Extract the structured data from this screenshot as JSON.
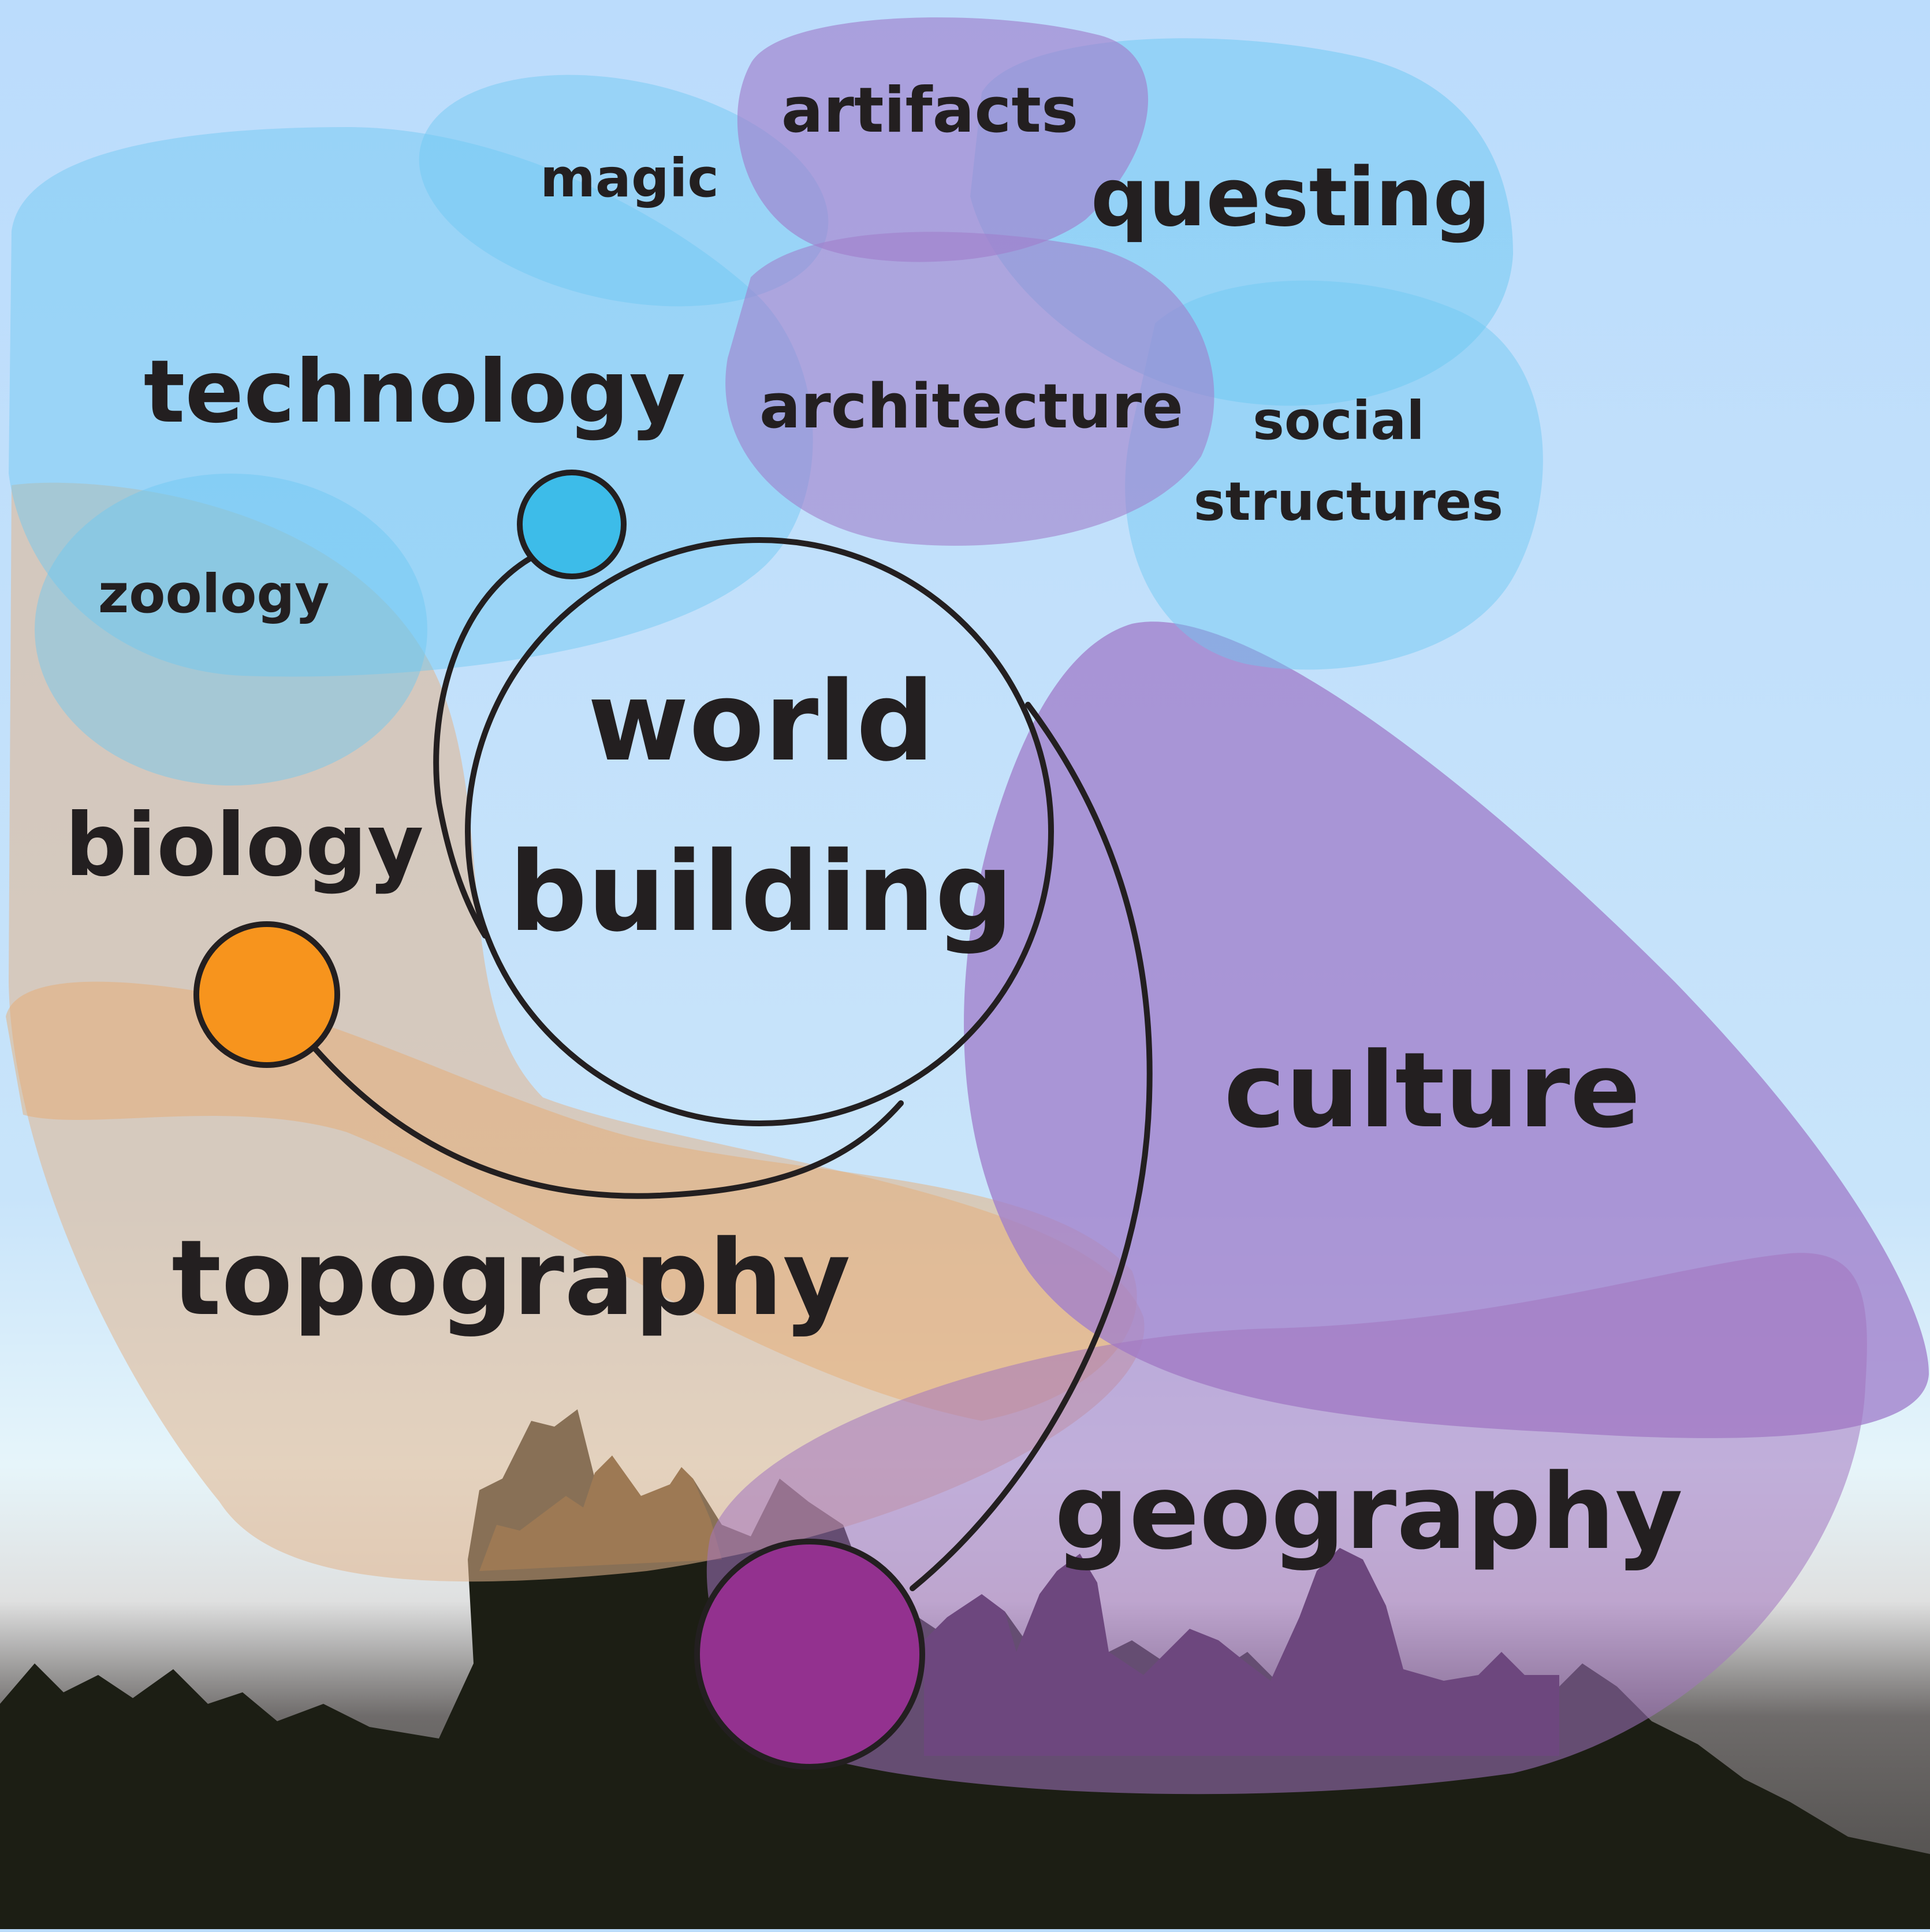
{
  "diagram": {
    "center": {
      "line1": "world",
      "line2": "building"
    },
    "labels": {
      "artifacts": "artifacts",
      "magic": "magic",
      "questing": "questing",
      "technology": "technology",
      "architecture": "architecture",
      "social_line1": "social",
      "social_line2": "structures",
      "zoology": "zoology",
      "biology": "biology",
      "culture": "culture",
      "topography": "topography",
      "geography": "geography"
    },
    "node_colors": {
      "technology": "#3dbce9",
      "biology": "#f7941d",
      "geography": "#93318f"
    },
    "blob_colors": {
      "blue": "#6cc8f2",
      "purple": "#a07fcc",
      "tan": "#e2b48c",
      "magenta": "#a274c0"
    }
  }
}
